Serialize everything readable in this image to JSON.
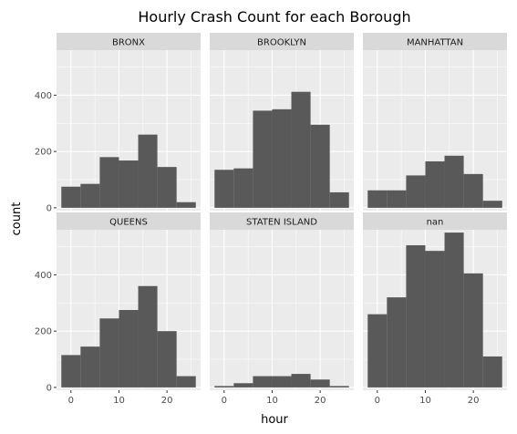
{
  "chart_data": {
    "type": "bar",
    "title": "Hourly Crash Count for each Borough",
    "xlabel": "hour",
    "ylabel": "count",
    "xlim": [
      -3,
      27
    ],
    "ylim": [
      -10,
      560
    ],
    "x_ticks": [
      0,
      10,
      20
    ],
    "y_ticks": [
      0,
      200,
      400
    ],
    "grid": true,
    "bin_edges": [
      -2,
      2,
      6,
      10,
      14,
      18,
      22,
      26
    ],
    "panels": [
      {
        "name": "BRONX",
        "values": [
          75,
          85,
          180,
          168,
          260,
          145,
          20
        ]
      },
      {
        "name": "BROOKLYN",
        "values": [
          135,
          140,
          345,
          350,
          412,
          295,
          55
        ]
      },
      {
        "name": "MANHATTAN",
        "values": [
          62,
          62,
          115,
          165,
          185,
          120,
          25
        ]
      },
      {
        "name": "QUEENS",
        "values": [
          115,
          145,
          245,
          275,
          360,
          200,
          40
        ]
      },
      {
        "name": "STATEN ISLAND",
        "values": [
          5,
          15,
          40,
          40,
          48,
          28,
          5
        ]
      },
      {
        "name": "nan",
        "values": [
          260,
          320,
          505,
          485,
          550,
          405,
          110
        ]
      }
    ]
  },
  "colors": {
    "panel_background": "#ebebeb",
    "grid_major": "#ffffff",
    "strip_background": "#d9d9d9",
    "bar_fill": "#595959"
  }
}
